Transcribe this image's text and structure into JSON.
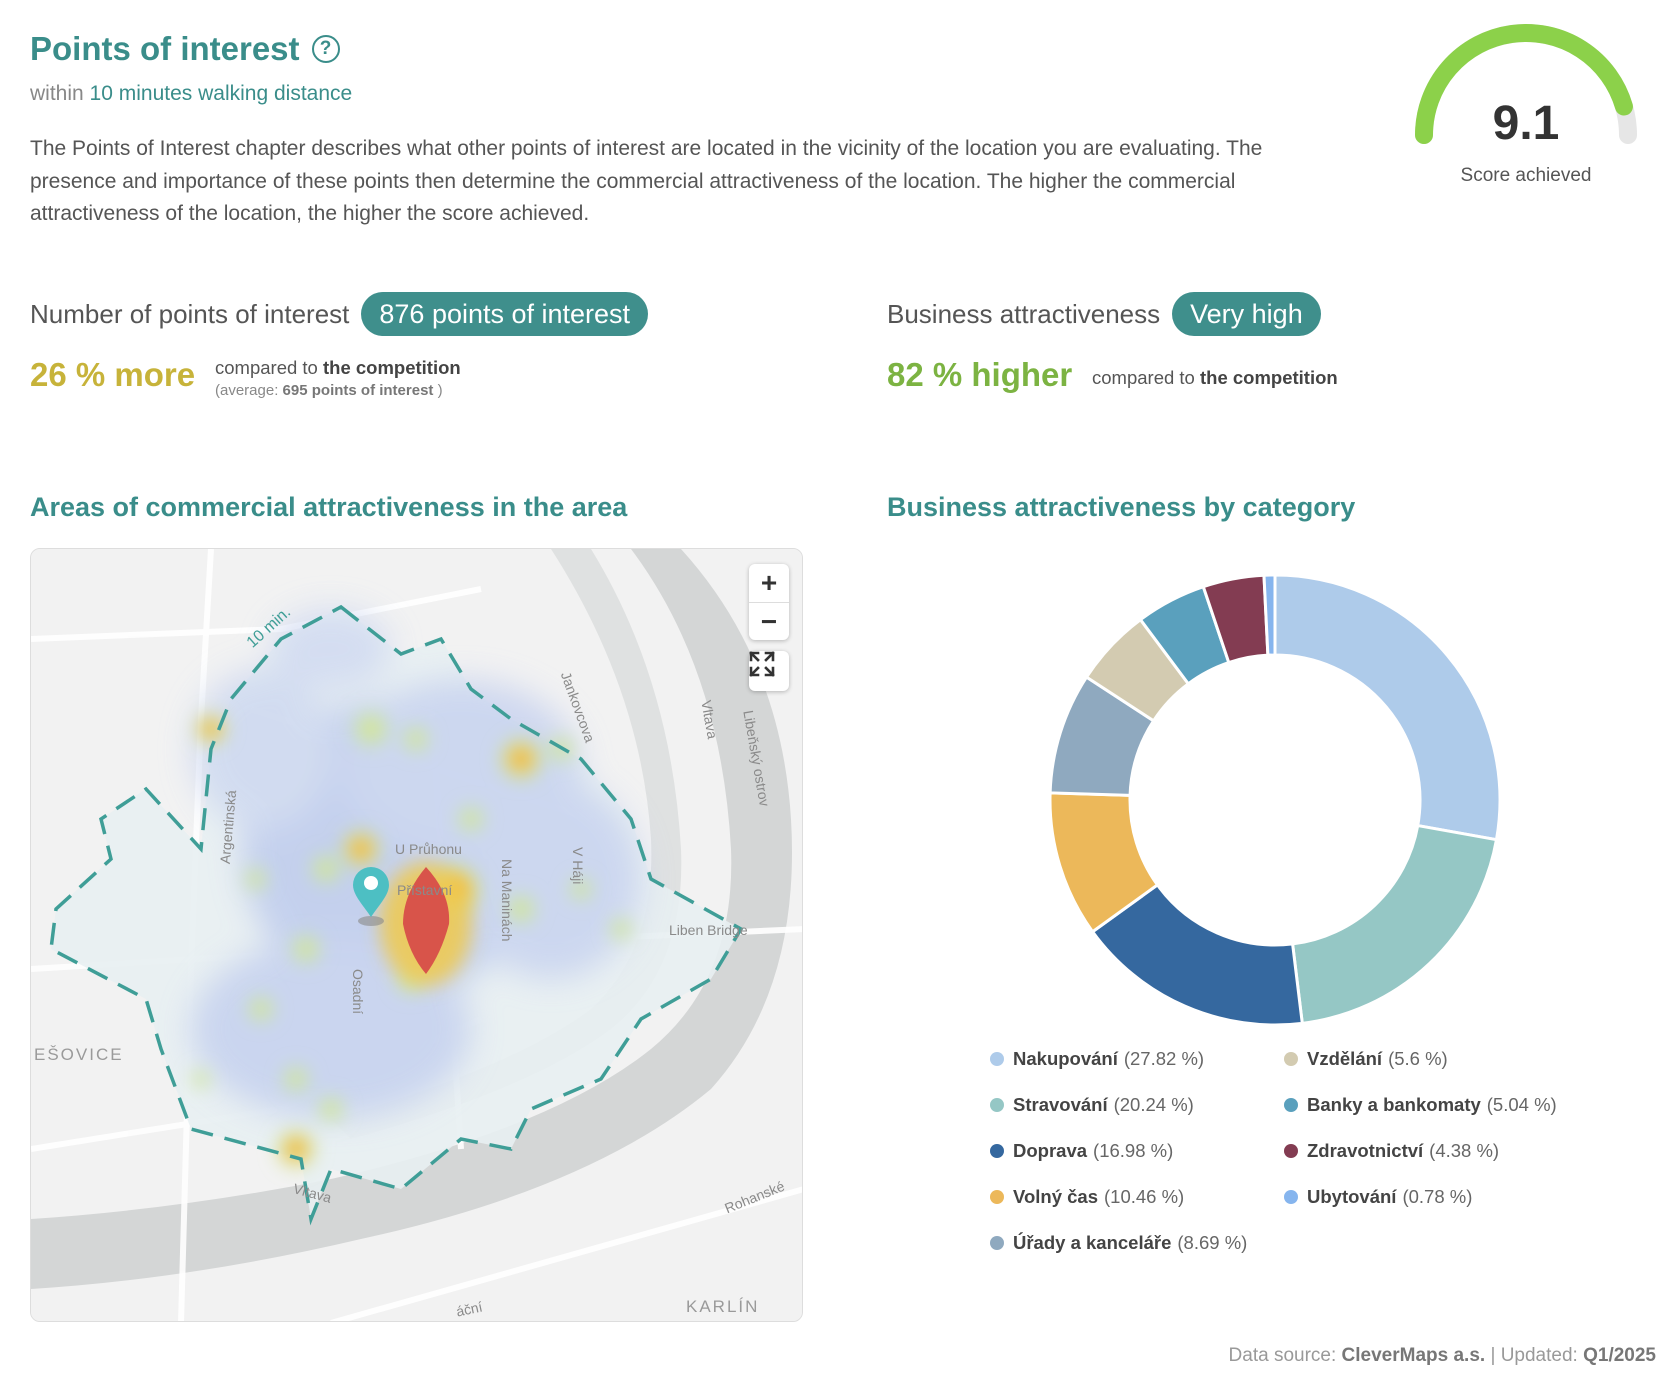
{
  "header": {
    "title": "Points of interest",
    "subtitle_prefix": "within",
    "subtitle_highlight": "10 minutes walking distance",
    "description": "The Points of Interest chapter describes what other points of interest are located in the vicinity of the location you are evaluating. The presence and importance of these points then determine the commercial attractiveness of the location. The higher the commercial attractiveness of the location, the higher the score achieved."
  },
  "score": {
    "value": "9.1",
    "label": "Score achieved",
    "fraction": 0.91,
    "color": "#8cd14a",
    "track_color": "#e6e6e6"
  },
  "poi_count": {
    "label": "Number of points of interest",
    "badge": "876 points of interest",
    "diff": "26 % more",
    "compared_prefix": "compared to",
    "compared_bold": "the competition",
    "average_prefix": "(average:",
    "average_value": "695 points of interest",
    "average_suffix": ")"
  },
  "attractiveness": {
    "label": "Business attractiveness",
    "badge": "Very high",
    "diff": "82 % higher",
    "compared_prefix": "compared to",
    "compared_bold": "the competition"
  },
  "map_section": {
    "title": "Areas of commercial attractiveness in the area",
    "isochrone_label": "10 min.",
    "labels": {
      "jankovcova": "Jankovcova",
      "libensky": "Libeňský ostrov",
      "vltava_top": "Vltava",
      "argentinska": "Argentinská",
      "u_pruhonu": "U Průhonu",
      "pristavni": "Přístavní",
      "na_maninach": "Na Maninách",
      "v_haji": "V Háji",
      "liben_bridge": "Liben Bridge",
      "osadni": "Osadní",
      "holesovice": "EŠOVICE",
      "vltava_bottom": "Vltava",
      "rohanska": "Rohanské",
      "karlin": "KARLÍN",
      "bottom_street": "áční"
    },
    "controls": {
      "zoom_in": "+",
      "zoom_out": "−"
    }
  },
  "chart_section": {
    "title": "Business attractiveness by category"
  },
  "chart_data": {
    "type": "pie",
    "donut": true,
    "categories": [
      "Nakupování",
      "Stravování",
      "Doprava",
      "Volný čas",
      "Úřady a kanceláře",
      "Vzdělání",
      "Banky a bankomaty",
      "Zdravotnictví",
      "Ubytování"
    ],
    "values": [
      27.82,
      20.24,
      16.98,
      10.46,
      8.69,
      5.6,
      5.04,
      4.38,
      0.78
    ],
    "colors": [
      "#aecbea",
      "#95c7c5",
      "#35689f",
      "#ecb85a",
      "#8fa9bf",
      "#d3cbb1",
      "#5aa0bd",
      "#833c52",
      "#86b5ee"
    ],
    "legend_placement": "bottom",
    "legend": [
      {
        "name": "Nakupování",
        "pct": "(27.82 %)"
      },
      {
        "name": "Stravování",
        "pct": "(20.24 %)"
      },
      {
        "name": "Doprava",
        "pct": "(16.98 %)"
      },
      {
        "name": "Volný čas",
        "pct": "(10.46 %)"
      },
      {
        "name": "Úřady a kanceláře",
        "pct": "(8.69 %)"
      },
      {
        "name": "Vzdělání",
        "pct": "(5.6 %)"
      },
      {
        "name": "Banky a bankomaty",
        "pct": "(5.04 %)"
      },
      {
        "name": "Zdravotnictví",
        "pct": "(4.38 %)"
      },
      {
        "name": "Ubytování",
        "pct": "(0.78 %)"
      }
    ]
  },
  "footer": {
    "source_prefix": "Data source:",
    "source": "CleverMaps a.s.",
    "separator": "|",
    "updated_prefix": "Updated:",
    "updated": "Q1/2025"
  }
}
